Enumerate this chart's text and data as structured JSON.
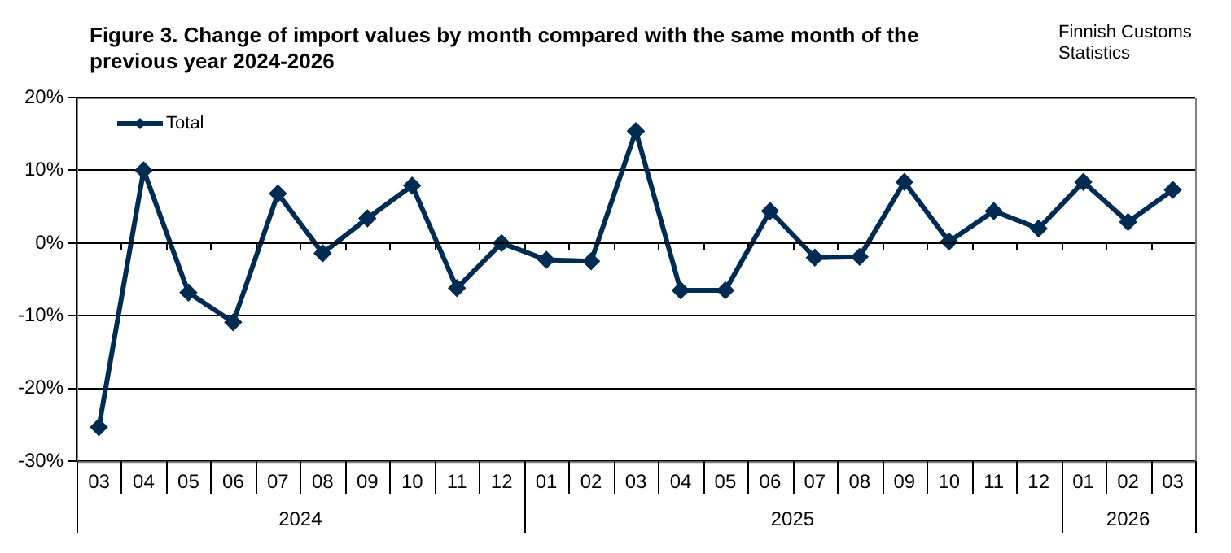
{
  "chart_data": {
    "type": "line",
    "title": "Figure 3. Change of import values by month compared with the same month of the previous year 2024-2026",
    "annotations": [
      "Finnish Customs Statistics",
      "2024",
      "2025",
      "2026"
    ],
    "categories": [
      "03",
      "04",
      "05",
      "06",
      "07",
      "08",
      "09",
      "10",
      "11",
      "12",
      "01",
      "02",
      "03",
      "04",
      "05",
      "06",
      "07",
      "08",
      "09",
      "10",
      "11",
      "12",
      "01",
      "02",
      "03"
    ],
    "series": [
      {
        "name": "Total",
        "color": "#002b52",
        "values": [
          -25.3,
          10.0,
          -6.8,
          -10.9,
          6.8,
          -1.4,
          3.4,
          7.9,
          -6.2,
          0,
          -2.3,
          -2.5,
          15.4,
          -6.5,
          -6.5,
          4.4,
          -2.0,
          -1.9,
          8.4,
          0.2,
          4.4,
          2.0,
          8.4,
          2.9,
          7.3
        ]
      }
    ],
    "ylim": [
      -30,
      20
    ],
    "yticks": [
      {
        "value": -30,
        "label": "-30%"
      },
      {
        "value": -20,
        "label": "-20%"
      },
      {
        "value": -10,
        "label": "-10%"
      },
      {
        "value": 0,
        "label": "0%"
      },
      {
        "value": 10,
        "label": "10%"
      },
      {
        "value": 20,
        "label": "20%"
      }
    ],
    "grid": "y",
    "legend": "top left",
    "marker": "diamond",
    "line_style": "solid"
  }
}
